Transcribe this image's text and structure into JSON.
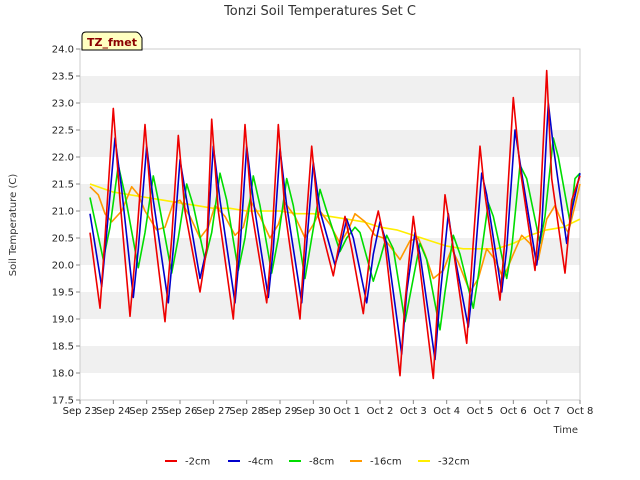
{
  "chart_data": {
    "type": "line",
    "title": "Tonzi Soil Temperatures Set C",
    "xlabel": "Time",
    "ylabel": "Soil Temperature (C)",
    "tag": "TZ_fmet",
    "ylim": [
      17.5,
      24.0
    ],
    "xlim": [
      0,
      15
    ],
    "yticks": [
      17.5,
      18.0,
      18.5,
      19.0,
      19.5,
      20.0,
      20.5,
      21.0,
      21.5,
      22.0,
      22.5,
      23.0,
      23.5,
      24.0
    ],
    "ytick_labels": [
      "17.5",
      "18.0",
      "18.5",
      "19.0",
      "19.5",
      "20.0",
      "20.5",
      "21.0",
      "21.5",
      "22.0",
      "22.5",
      "23.0",
      "23.5",
      "24.0"
    ],
    "xticks": [
      "Sep 23",
      "Sep 24",
      "Sep 25",
      "Sep 26",
      "Sep 27",
      "Sep 28",
      "Sep 29",
      "Sep 30",
      "Oct 1",
      "Oct 2",
      "Oct 3",
      "Oct 4",
      "Oct 5",
      "Oct 6",
      "Oct 7",
      "Oct 8"
    ],
    "grid": "horizontal bands",
    "legend_position": "bottom",
    "series": [
      {
        "name": "-2cm",
        "color": "#ee0000",
        "x": [
          0.3,
          0.6,
          0.75,
          1.0,
          1.2,
          1.5,
          1.7,
          1.95,
          2.15,
          2.55,
          2.75,
          2.95,
          3.15,
          3.6,
          3.8,
          3.95,
          4.15,
          4.6,
          4.75,
          4.95,
          5.15,
          5.6,
          5.75,
          5.95,
          6.15,
          6.6,
          6.75,
          6.95,
          7.15,
          7.6,
          7.75,
          7.95,
          8.15,
          8.5,
          8.75,
          8.95,
          9.15,
          9.6,
          9.75,
          10.0,
          10.15,
          10.6,
          10.75,
          10.95,
          11.15,
          11.6,
          11.75,
          12.0,
          12.15,
          12.6,
          12.75,
          13.0,
          13.2,
          13.65,
          13.8,
          14.0,
          14.15,
          14.55,
          14.75,
          15.0
        ],
        "y": [
          20.6,
          19.2,
          20.5,
          22.9,
          21.2,
          19.05,
          20.5,
          22.6,
          21.0,
          18.95,
          20.5,
          22.4,
          21.0,
          19.5,
          20.3,
          22.7,
          21.0,
          19.0,
          20.4,
          22.6,
          21.0,
          19.3,
          20.4,
          22.6,
          21.0,
          19.0,
          20.5,
          22.2,
          20.9,
          19.8,
          20.3,
          20.9,
          20.3,
          19.1,
          20.5,
          21.0,
          20.4,
          17.95,
          19.3,
          20.9,
          20.2,
          17.9,
          19.5,
          21.3,
          20.5,
          18.55,
          20.0,
          22.2,
          21.3,
          19.35,
          20.5,
          23.1,
          21.8,
          19.9,
          21.0,
          23.6,
          21.6,
          19.85,
          21.2,
          21.65
        ]
      },
      {
        "name": "-4cm",
        "color": "#0000cc",
        "x": [
          0.3,
          0.65,
          0.8,
          1.05,
          1.25,
          1.6,
          1.75,
          2.0,
          2.2,
          2.65,
          2.8,
          3.0,
          3.2,
          3.6,
          3.8,
          4.0,
          4.2,
          4.65,
          4.8,
          5.0,
          5.2,
          5.65,
          5.8,
          6.0,
          6.2,
          6.65,
          6.8,
          7.0,
          7.2,
          7.65,
          7.8,
          8.0,
          8.2,
          8.6,
          8.8,
          9.0,
          9.2,
          9.65,
          9.8,
          10.05,
          10.2,
          10.65,
          10.8,
          11.05,
          11.2,
          11.65,
          11.8,
          12.05,
          12.2,
          12.65,
          12.8,
          13.05,
          13.25,
          13.7,
          13.85,
          14.05,
          14.2,
          14.6,
          14.75,
          15.0
        ],
        "y": [
          20.95,
          19.6,
          20.6,
          22.35,
          21.4,
          19.4,
          20.3,
          22.2,
          21.2,
          19.3,
          20.3,
          21.95,
          21.2,
          19.75,
          20.3,
          22.2,
          21.2,
          19.3,
          20.3,
          22.2,
          21.2,
          19.4,
          20.3,
          22.15,
          21.1,
          19.3,
          20.4,
          21.9,
          21.0,
          20.0,
          20.3,
          20.85,
          20.5,
          19.3,
          20.2,
          20.8,
          20.4,
          18.35,
          19.5,
          20.6,
          20.2,
          18.25,
          19.4,
          20.95,
          20.3,
          18.85,
          19.7,
          21.7,
          21.3,
          19.5,
          20.3,
          22.5,
          21.7,
          20.0,
          20.7,
          23.0,
          22.2,
          20.4,
          21.0,
          21.7
        ]
      },
      {
        "name": "-8cm",
        "color": "#00dd00",
        "x": [
          0.3,
          0.7,
          0.9,
          1.15,
          1.35,
          1.75,
          1.95,
          2.2,
          2.35,
          2.75,
          2.95,
          3.2,
          3.4,
          3.75,
          3.95,
          4.2,
          4.4,
          4.75,
          4.95,
          5.2,
          5.4,
          5.75,
          5.95,
          6.2,
          6.4,
          6.75,
          6.95,
          7.2,
          7.4,
          7.8,
          8.0,
          8.25,
          8.4,
          8.8,
          9.0,
          9.2,
          9.4,
          9.75,
          9.95,
          10.2,
          10.4,
          10.8,
          10.95,
          11.2,
          11.4,
          11.8,
          11.95,
          12.25,
          12.4,
          12.8,
          12.95,
          13.2,
          13.4,
          13.8,
          13.95,
          14.2,
          14.35,
          14.7,
          14.85,
          15.0
        ],
        "y": [
          21.25,
          20.1,
          20.7,
          21.85,
          21.3,
          19.95,
          20.6,
          21.65,
          21.2,
          19.85,
          20.5,
          21.5,
          21.1,
          20.1,
          20.6,
          21.7,
          21.2,
          19.9,
          20.5,
          21.65,
          21.1,
          19.85,
          20.5,
          21.6,
          21.1,
          19.75,
          20.5,
          21.4,
          21.0,
          20.25,
          20.5,
          20.7,
          20.6,
          19.7,
          20.1,
          20.55,
          20.3,
          18.95,
          19.6,
          20.4,
          20.1,
          18.8,
          19.5,
          20.55,
          20.2,
          19.2,
          19.8,
          21.15,
          20.9,
          19.75,
          20.3,
          21.85,
          21.6,
          20.4,
          20.9,
          22.35,
          22.0,
          20.8,
          21.6,
          21.7
        ]
      },
      {
        "name": "-16cm",
        "color": "#ff9900",
        "x": [
          0.3,
          0.55,
          0.75,
          0.95,
          1.25,
          1.55,
          1.75,
          1.95,
          2.3,
          2.55,
          2.8,
          3.0,
          3.3,
          3.6,
          3.85,
          4.05,
          4.35,
          4.65,
          4.9,
          5.1,
          5.4,
          5.7,
          5.95,
          6.15,
          6.45,
          6.75,
          7.0,
          7.2,
          7.5,
          7.8,
          8.05,
          8.25,
          8.55,
          8.85,
          9.1,
          9.3,
          9.6,
          9.9,
          10.15,
          10.35,
          10.6,
          10.9,
          11.15,
          11.35,
          11.7,
          11.95,
          12.2,
          12.45,
          12.7,
          13.0,
          13.25,
          13.5,
          13.75,
          14.0,
          14.25,
          14.45,
          14.65,
          14.85,
          15.0
        ],
        "y": [
          21.45,
          21.3,
          20.95,
          20.8,
          21.0,
          21.45,
          21.3,
          21.0,
          20.65,
          20.7,
          21.15,
          21.2,
          20.9,
          20.5,
          20.7,
          21.1,
          20.9,
          20.55,
          20.7,
          21.2,
          20.9,
          20.5,
          20.75,
          21.15,
          20.9,
          20.5,
          20.75,
          21.0,
          20.75,
          20.4,
          20.65,
          20.95,
          20.8,
          20.55,
          20.5,
          20.35,
          20.1,
          20.45,
          20.5,
          20.2,
          19.75,
          19.9,
          20.3,
          20.05,
          19.5,
          19.75,
          20.3,
          20.1,
          19.75,
          20.2,
          20.55,
          20.4,
          20.1,
          20.85,
          21.1,
          20.8,
          20.6,
          21.1,
          21.5
        ]
      },
      {
        "name": "-32cm",
        "color": "#ffee00",
        "x": [
          0.3,
          1.0,
          1.5,
          2.0,
          2.5,
          3.0,
          3.5,
          4.0,
          4.5,
          5.0,
          5.5,
          6.0,
          6.5,
          7.0,
          7.5,
          8.0,
          8.5,
          9.0,
          9.5,
          10.0,
          10.5,
          11.0,
          11.5,
          12.0,
          12.5,
          13.0,
          13.5,
          14.0,
          14.5,
          15.0
        ],
        "y": [
          21.5,
          21.35,
          21.3,
          21.25,
          21.2,
          21.15,
          21.1,
          21.05,
          21.05,
          21.0,
          21.0,
          21.0,
          20.95,
          20.95,
          20.9,
          20.85,
          20.8,
          20.7,
          20.65,
          20.55,
          20.45,
          20.35,
          20.3,
          20.3,
          20.3,
          20.4,
          20.55,
          20.65,
          20.7,
          20.85
        ]
      }
    ]
  }
}
